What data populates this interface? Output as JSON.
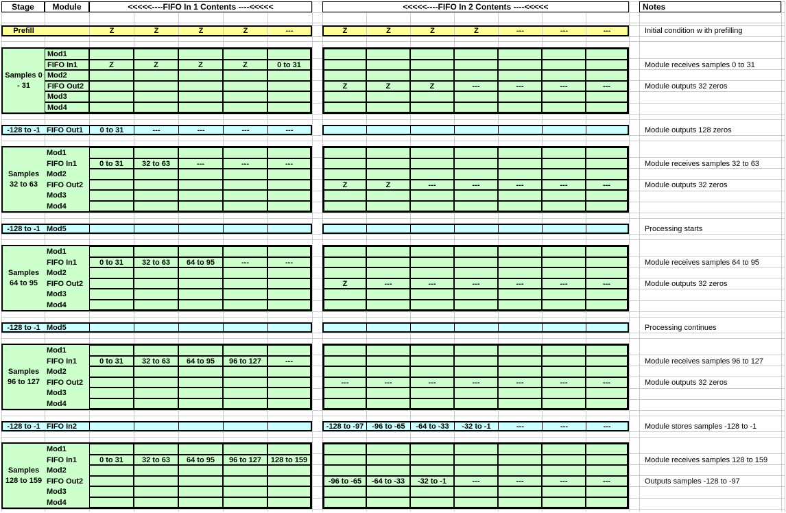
{
  "header": {
    "stage": "Stage",
    "module": "Module",
    "fifo1": "<<<<<----FIFO In 1 Contents ----<<<<<",
    "fifo2": "<<<<<----FIFO In 2 Contents ----<<<<<",
    "notes": "Notes"
  },
  "colors": {
    "yellow": "#FFFF99",
    "green": "#CCFFCC",
    "cyan": "#CCFFFF",
    "grid_line": "#C9C9C9",
    "border": "#000000"
  },
  "block_modules": [
    "Mod1",
    "FIFO In1",
    "Mod2",
    "FIFO Out2",
    "Mod3",
    "Mod4"
  ],
  "sections": [
    {
      "kind": "row",
      "color": "yellow",
      "stage": "Prefill",
      "module": "",
      "in1": [
        "Z",
        "Z",
        "Z",
        "Z",
        "---"
      ],
      "in2": [
        "Z",
        "Z",
        "Z",
        "Z",
        "---",
        "---",
        "---"
      ],
      "note": "Initial condition w ith prefilling"
    },
    {
      "kind": "block",
      "stage_lines": [
        "Samples 0",
        "- 31"
      ],
      "modules_bordered": true,
      "in1_values": {
        "1": [
          "Z",
          "Z",
          "Z",
          "Z",
          "0 to 31"
        ]
      },
      "in2_values": {
        "3": [
          "Z",
          "Z",
          "Z",
          "---",
          "---",
          "---",
          "---"
        ]
      },
      "notes": [
        {
          "row": 1,
          "text": "Module receives samples 0 to 31"
        },
        {
          "row": 3,
          "text": "Module outputs 32 zeros"
        }
      ]
    },
    {
      "kind": "row",
      "color": "cyan",
      "stage": "-128 to -1",
      "module": "FIFO Out1",
      "in1": [
        "0 to 31",
        "---",
        "---",
        "---",
        "---"
      ],
      "in2": [
        "",
        "",
        "",
        "",
        "",
        "",
        ""
      ],
      "note": "Module outputs 128 zeros"
    },
    {
      "kind": "block",
      "stage_lines": [
        "Samples",
        "32 to 63"
      ],
      "modules_bordered": false,
      "in1_values": {
        "1": [
          "0 to 31",
          "32 to 63",
          "---",
          "---",
          "---"
        ]
      },
      "in2_values": {
        "3": [
          "Z",
          "Z",
          "---",
          "---",
          "---",
          "---",
          "---"
        ]
      },
      "notes": [
        {
          "row": 1,
          "text": "Module receives samples 32 to 63"
        },
        {
          "row": 3,
          "text": "Module outputs 32 zeros"
        }
      ]
    },
    {
      "kind": "row",
      "color": "cyan",
      "stage": "-128 to -1",
      "module": "Mod5",
      "in1": [
        "",
        "",
        "",
        "",
        ""
      ],
      "in2": [
        "",
        "",
        "",
        "",
        "",
        "",
        ""
      ],
      "note": "Processing starts"
    },
    {
      "kind": "block",
      "stage_lines": [
        "Samples",
        "64 to 95"
      ],
      "modules_bordered": false,
      "in1_values": {
        "1": [
          "0 to 31",
          "32 to 63",
          "64 to 95",
          "---",
          "---"
        ]
      },
      "in2_values": {
        "3": [
          "Z",
          "---",
          "---",
          "---",
          "---",
          "---",
          "---"
        ]
      },
      "notes": [
        {
          "row": 1,
          "text": "Module receives samples 64 to 95"
        },
        {
          "row": 3,
          "text": "Module outputs 32 zeros"
        }
      ]
    },
    {
      "kind": "row",
      "color": "cyan",
      "stage": "-128 to -1",
      "module": "Mod5",
      "in1": [
        "",
        "",
        "",
        "",
        ""
      ],
      "in2": [
        "",
        "",
        "",
        "",
        "",
        "",
        ""
      ],
      "note": "Processing continues"
    },
    {
      "kind": "block",
      "stage_lines": [
        "Samples",
        "96 to 127"
      ],
      "modules_bordered": false,
      "in1_values": {
        "1": [
          "0 to 31",
          "32 to 63",
          "64 to 95",
          "96 to 127",
          "---"
        ]
      },
      "in2_values": {
        "3": [
          "---",
          "---",
          "---",
          "---",
          "---",
          "---",
          "---"
        ]
      },
      "notes": [
        {
          "row": 1,
          "text": "Module receives samples 96 to 127"
        },
        {
          "row": 3,
          "text": "Module outputs 32 zeros"
        }
      ]
    },
    {
      "kind": "row",
      "color": "cyan",
      "stage": "-128 to -1",
      "module": "FIFO In2",
      "in1": [
        "",
        "",
        "",
        "",
        ""
      ],
      "in2": [
        "-128 to -97",
        "-96 to -65",
        "-64 to -33",
        "-32 to -1",
        "---",
        "---",
        "---"
      ],
      "note": "Module stores samples -128 to -1"
    },
    {
      "kind": "block",
      "stage_lines": [
        "Samples",
        "128 to 159"
      ],
      "modules_bordered": false,
      "in1_values": {
        "1": [
          "0 to 31",
          "32 to 63",
          "64 to 95",
          "96 to 127",
          "128 to 159"
        ]
      },
      "in2_values": {
        "3": [
          "-96 to -65",
          "-64 to -33",
          "-32 to -1",
          "---",
          "---",
          "---",
          "---"
        ]
      },
      "notes": [
        {
          "row": 1,
          "text": "Module receives samples 128 to 159"
        },
        {
          "row": 3,
          "text": "Outputs samples -128 to -97"
        }
      ]
    }
  ]
}
